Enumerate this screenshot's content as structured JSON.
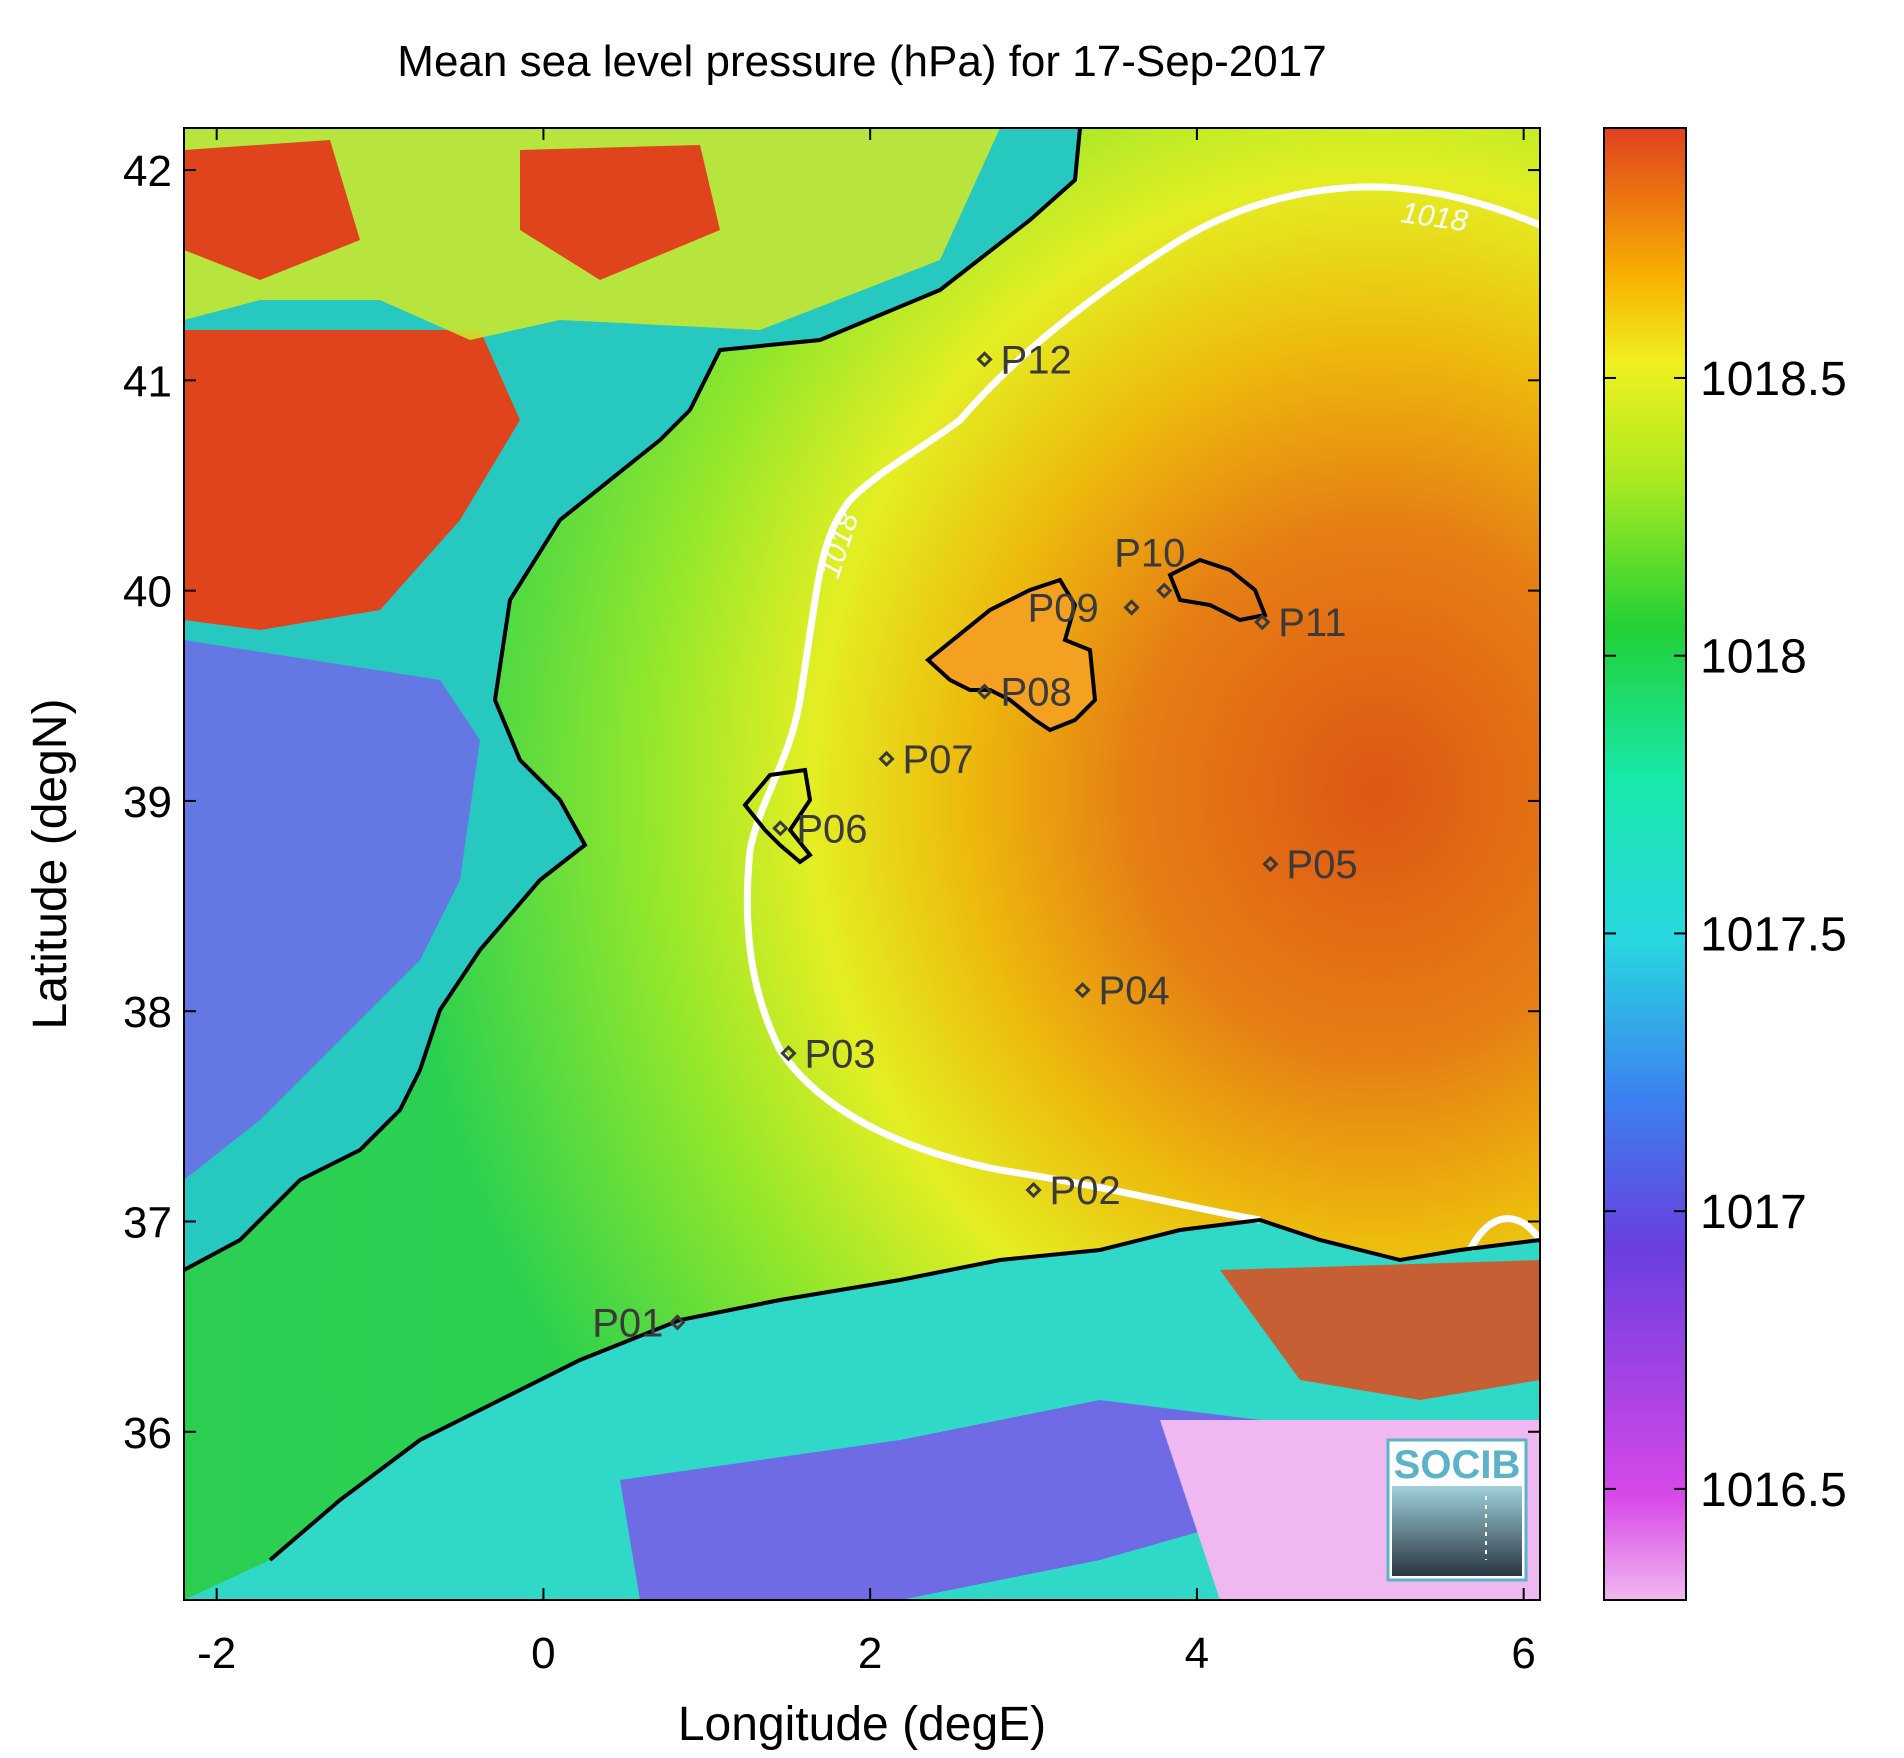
{
  "title": "Mean sea level pressure (hPa) for 17-Sep-2017",
  "xlabel": "Longitude (degE)",
  "ylabel": "Latitude (degN)",
  "x_ticks": [
    "-2",
    "0",
    "2",
    "4",
    "6"
  ],
  "y_ticks": [
    "36",
    "37",
    "38",
    "39",
    "40",
    "41",
    "42"
  ],
  "colorbar_ticks": [
    "1016.5",
    "1017",
    "1017.5",
    "1018",
    "1018.5"
  ],
  "contour_label": "1018",
  "logo_text": "SOCIB",
  "colors": {
    "land_red": "#e0411c",
    "sea_green": "#22d04a",
    "high_orange": "#f06010",
    "contour": "#ffffff",
    "coast": "#000000"
  },
  "chart_data": {
    "type": "heatmap",
    "title": "Mean sea level pressure (hPa) for 17-Sep-2017",
    "xlabel": "Longitude (degE)",
    "ylabel": "Latitude (degN)",
    "xlim": [
      -2.2,
      6.1
    ],
    "ylim": [
      35.2,
      42.2
    ],
    "clim": [
      1016.3,
      1018.95
    ],
    "contour_levels": [
      1018
    ],
    "stations": [
      {
        "name": "P01",
        "lon": 0.82,
        "lat": 36.52
      },
      {
        "name": "P02",
        "lon": 3.0,
        "lat": 37.15
      },
      {
        "name": "P03",
        "lon": 1.5,
        "lat": 37.8
      },
      {
        "name": "P04",
        "lon": 3.3,
        "lat": 38.1
      },
      {
        "name": "P05",
        "lon": 4.45,
        "lat": 38.7
      },
      {
        "name": "P06",
        "lon": 1.45,
        "lat": 38.87
      },
      {
        "name": "P07",
        "lon": 2.1,
        "lat": 39.2
      },
      {
        "name": "P08",
        "lon": 2.7,
        "lat": 39.52
      },
      {
        "name": "P09",
        "lon": 3.6,
        "lat": 39.92
      },
      {
        "name": "P10",
        "lon": 3.8,
        "lat": 40.0
      },
      {
        "name": "P11",
        "lon": 4.4,
        "lat": 39.85
      },
      {
        "name": "P12",
        "lon": 2.7,
        "lat": 41.1
      }
    ]
  }
}
